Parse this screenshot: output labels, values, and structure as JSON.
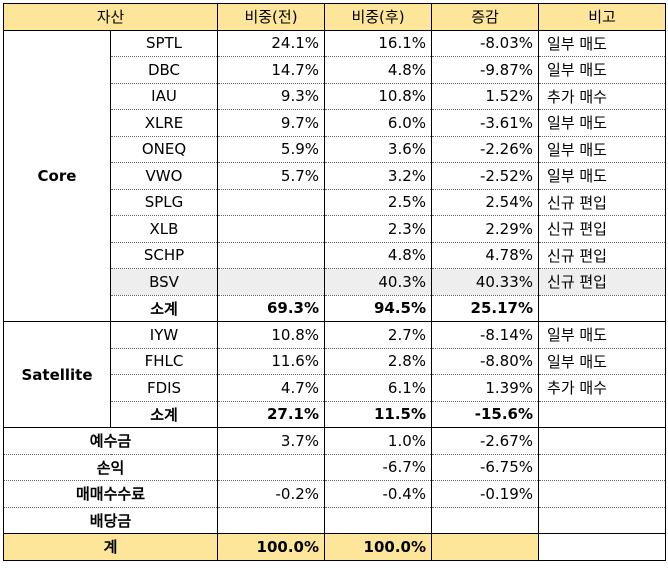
{
  "headers": [
    "자산",
    "비중(전)",
    "비중(후)",
    "증감",
    "비고"
  ],
  "groups": [
    {
      "label": "Core",
      "rows": [
        {
          "ticker": "SPTL",
          "before": "24.1%",
          "after": "16.1%",
          "change": "-8.03%",
          "note": "일부 매도"
        },
        {
          "ticker": "DBC",
          "before": "14.7%",
          "after": "4.8%",
          "change": "-9.87%",
          "note": "일부 매도"
        },
        {
          "ticker": "IAU",
          "before": "9.3%",
          "after": "10.8%",
          "change": "1.52%",
          "note": "추가 매수"
        },
        {
          "ticker": "XLRE",
          "before": "9.7%",
          "after": "6.0%",
          "change": "-3.61%",
          "note": "일부 매도"
        },
        {
          "ticker": "ONEQ",
          "before": "5.9%",
          "after": "3.6%",
          "change": "-2.26%",
          "note": "일부 매도"
        },
        {
          "ticker": "VWO",
          "before": "5.7%",
          "after": "3.2%",
          "change": "-2.52%",
          "note": "일부 매도"
        },
        {
          "ticker": "SPLG",
          "before": "",
          "after": "2.5%",
          "change": "2.54%",
          "note": "신규 편입"
        },
        {
          "ticker": "XLB",
          "before": "",
          "after": "2.3%",
          "change": "2.29%",
          "note": "신규 편입"
        },
        {
          "ticker": "SCHP",
          "before": "",
          "after": "4.8%",
          "change": "4.78%",
          "note": "신규 편입"
        },
        {
          "ticker": "BSV",
          "before": "",
          "after": "40.3%",
          "change": "40.33%",
          "note": "신규 편입"
        }
      ],
      "subtotal": {
        "label": "소계",
        "before": "69.3%",
        "after": "94.5%",
        "change": "25.17%"
      }
    },
    {
      "label": "Satellite",
      "rows": [
        {
          "ticker": "IYW",
          "before": "10.8%",
          "after": "2.7%",
          "change": "-8.14%",
          "note": "일부 매도"
        },
        {
          "ticker": "FHLC",
          "before": "11.6%",
          "after": "2.8%",
          "change": "-8.80%",
          "note": "일부 매도"
        },
        {
          "ticker": "FDIS",
          "before": "4.7%",
          "after": "6.1%",
          "change": "1.39%",
          "note": "추가 매수"
        }
      ],
      "subtotal": {
        "label": "소계",
        "before": "27.1%",
        "after": "11.5%",
        "change": "-15.6%"
      }
    }
  ],
  "extras": [
    {
      "label": "예수금",
      "before": "3.7%",
      "after": "1.0%",
      "change": "-2.67%",
      "note": ""
    },
    {
      "label": "손익",
      "before": "",
      "after": "-6.7%",
      "change": "-6.75%",
      "note": ""
    },
    {
      "label": "매매수수료",
      "before": "-0.2%",
      "after": "-0.4%",
      "change": "-0.19%",
      "note": ""
    },
    {
      "label": "배당금",
      "before": "",
      "after": "",
      "change": "",
      "note": ""
    }
  ],
  "total": {
    "label": "계",
    "before": "100.0%",
    "after": "100.0%",
    "change": "",
    "note": ""
  },
  "colors": {
    "header_bg": "#fde59a",
    "highlight_row": "#eeeeee"
  }
}
